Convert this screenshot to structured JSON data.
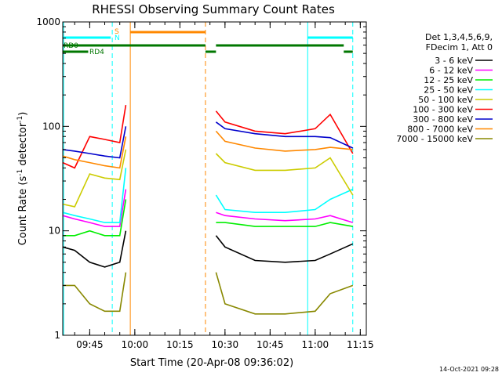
{
  "chart_data": {
    "type": "line",
    "title": "RHESSI Observing Summary Count Rates",
    "xlabel": "Start Time (20-Apr-08 09:36:02)",
    "ylabel_main": "Count Rate (s",
    "ylabel_sup1": "-1",
    "ylabel_mid": " detector",
    "ylabel_sup2": "-1",
    "ylabel_end": ")",
    "y_scale": "log",
    "ylim": [
      1,
      1000
    ],
    "y_ticks": [
      {
        "value": 1,
        "label": "1"
      },
      {
        "value": 10,
        "label": "10"
      },
      {
        "value": 100,
        "label": "100"
      },
      {
        "value": 1000,
        "label": "1000"
      }
    ],
    "x_range": [
      "09:36:02",
      "11:17:00"
    ],
    "x_ticks": [
      "09:45",
      "10:00",
      "10:15",
      "10:30",
      "10:45",
      "11:00",
      "11:15"
    ],
    "date_stamp": "14-Oct-2021 09:28",
    "legend": {
      "position": "right",
      "header": [
        "Det 1,3,4,5,6,9,",
        "FDecim 1, Att 0"
      ],
      "entries": [
        {
          "label": "3 - 6 keV",
          "color": "#000000"
        },
        {
          "label": "6 - 12 keV",
          "color": "#ff00ff"
        },
        {
          "label": "12 - 25 keV",
          "color": "#00ee00"
        },
        {
          "label": "25 - 50 keV",
          "color": "#00ffff"
        },
        {
          "label": "50 - 100 keV",
          "color": "#cccc00"
        },
        {
          "label": "100 - 300 keV",
          "color": "#ff0000"
        },
        {
          "label": "300 - 800 keV",
          "color": "#0000cc"
        },
        {
          "label": "800 - 7000 keV",
          "color": "#ff8800"
        },
        {
          "label": "7000 - 15000 keV",
          "color": "#888800"
        }
      ]
    },
    "flags": [
      {
        "label": "RD0",
        "color": "#007700",
        "segments": [
          [
            "09:36:02",
            "10:23:30"
          ],
          [
            "10:27:00",
            "11:09:30"
          ]
        ]
      },
      {
        "label": "RD4",
        "color": "#007700",
        "segments": [
          [
            "09:36:02",
            "09:44:30"
          ],
          [
            "10:23:30",
            "10:27:00"
          ],
          [
            "11:09:30",
            "11:12:30"
          ]
        ]
      },
      {
        "label": "S",
        "color": "#ff8800",
        "segments": [
          [
            "09:58:30",
            "10:23:30"
          ]
        ]
      },
      {
        "label": "N",
        "color": "#00ffff",
        "segments": [
          [
            "09:36:02",
            "09:52:00"
          ],
          [
            "10:57:30",
            "11:12:30"
          ]
        ]
      }
    ],
    "markers": [
      {
        "time": "09:36:20",
        "color": "#00ffff",
        "style": "solid"
      },
      {
        "time": "09:52:30",
        "color": "#00ffff",
        "style": "dashed"
      },
      {
        "time": "09:58:30",
        "color": "#ff8800",
        "style": "solid"
      },
      {
        "time": "10:23:30",
        "color": "#ff8800",
        "style": "dashed"
      },
      {
        "time": "10:57:30",
        "color": "#00ffff",
        "style": "solid"
      },
      {
        "time": "11:12:30",
        "color": "#00ffff",
        "style": "dashed"
      }
    ],
    "series": [
      {
        "name": "3 - 6 keV",
        "color": "#000000",
        "segments": [
          {
            "times": [
              "09:36:02",
              "09:40",
              "09:45",
              "09:50",
              "09:55",
              "09:57:00"
            ],
            "values": [
              7,
              6.5,
              5,
              4.5,
              5,
              10
            ]
          },
          {
            "times": [
              "10:27:00",
              "10:30",
              "10:40",
              "10:50",
              "11:00",
              "11:05",
              "11:12:30"
            ],
            "values": [
              9,
              7,
              5.2,
              5,
              5.2,
              6,
              7.5
            ]
          }
        ]
      },
      {
        "name": "6 - 12 keV",
        "color": "#ff00ff",
        "segments": [
          {
            "times": [
              "09:36:02",
              "09:40",
              "09:45",
              "09:50",
              "09:55",
              "09:57:00"
            ],
            "values": [
              14,
              13,
              12,
              11,
              11,
              25
            ]
          },
          {
            "times": [
              "10:27:00",
              "10:30",
              "10:40",
              "10:50",
              "11:00",
              "11:05",
              "11:12:30"
            ],
            "values": [
              15,
              14,
              13,
              12.5,
              13,
              14,
              12
            ]
          }
        ]
      },
      {
        "name": "12 - 25 keV",
        "color": "#00ee00",
        "segments": [
          {
            "times": [
              "09:36:02",
              "09:40",
              "09:45",
              "09:50",
              "09:55",
              "09:57:00"
            ],
            "values": [
              9,
              9,
              10,
              9,
              9,
              20
            ]
          },
          {
            "times": [
              "10:27:00",
              "10:30",
              "10:40",
              "10:50",
              "11:00",
              "11:05",
              "11:12:30"
            ],
            "values": [
              12,
              12,
              11,
              11,
              11,
              12,
              11
            ]
          }
        ]
      },
      {
        "name": "25 - 50 keV",
        "color": "#00ffff",
        "segments": [
          {
            "times": [
              "09:36:02",
              "09:40",
              "09:45",
              "09:50",
              "09:55",
              "09:57:00"
            ],
            "values": [
              15,
              14,
              13,
              12,
              12,
              40
            ]
          },
          {
            "times": [
              "10:27:00",
              "10:30",
              "10:40",
              "10:50",
              "11:00",
              "11:05",
              "11:12:30"
            ],
            "values": [
              22,
              16,
              15,
              15,
              16,
              20,
              25
            ]
          }
        ]
      },
      {
        "name": "50 - 100 keV",
        "color": "#cccc00",
        "segments": [
          {
            "times": [
              "09:36:02",
              "09:40",
              "09:45",
              "09:50",
              "09:55",
              "09:57:00"
            ],
            "values": [
              18,
              17,
              35,
              32,
              31,
              60
            ]
          },
          {
            "times": [
              "10:27:00",
              "10:30",
              "10:40",
              "10:50",
              "11:00",
              "11:05",
              "11:12:30"
            ],
            "values": [
              55,
              45,
              38,
              38,
              40,
              50,
              22
            ]
          }
        ]
      },
      {
        "name": "100 - 300 keV",
        "color": "#ff0000",
        "segments": [
          {
            "times": [
              "09:36:02",
              "09:40",
              "09:45",
              "09:50",
              "09:55",
              "09:57:00"
            ],
            "values": [
              45,
              40,
              80,
              75,
              70,
              160
            ]
          },
          {
            "times": [
              "10:27:00",
              "10:30",
              "10:40",
              "10:50",
              "11:00",
              "11:05",
              "11:12:30"
            ],
            "values": [
              140,
              110,
              90,
              85,
              95,
              130,
              55
            ]
          }
        ]
      },
      {
        "name": "300 - 800 keV",
        "color": "#0000cc",
        "segments": [
          {
            "times": [
              "09:36:02",
              "09:40",
              "09:45",
              "09:50",
              "09:55",
              "09:57:00"
            ],
            "values": [
              60,
              58,
              55,
              52,
              50,
              100
            ]
          },
          {
            "times": [
              "10:27:00",
              "10:30",
              "10:40",
              "10:50",
              "11:00",
              "11:05",
              "11:12:30"
            ],
            "values": [
              110,
              95,
              85,
              80,
              80,
              78,
              62
            ]
          }
        ]
      },
      {
        "name": "800 - 7000 keV",
        "color": "#ff8800",
        "segments": [
          {
            "times": [
              "09:36:02",
              "09:40",
              "09:45",
              "09:50",
              "09:55",
              "09:57:00"
            ],
            "values": [
              52,
              48,
              45,
              42,
              40,
              80
            ]
          },
          {
            "times": [
              "10:27:00",
              "10:30",
              "10:40",
              "10:50",
              "11:00",
              "11:05",
              "11:12:30"
            ],
            "values": [
              90,
              72,
              62,
              58,
              60,
              63,
              60
            ]
          }
        ]
      },
      {
        "name": "7000 - 15000 keV",
        "color": "#888800",
        "segments": [
          {
            "times": [
              "09:36:02",
              "09:40",
              "09:45",
              "09:50",
              "09:55",
              "09:57:00"
            ],
            "values": [
              3,
              3,
              2,
              1.7,
              1.7,
              4
            ]
          },
          {
            "times": [
              "10:27:00",
              "10:30",
              "10:40",
              "10:50",
              "11:00",
              "11:05",
              "11:12:30"
            ],
            "values": [
              4,
              2,
              1.6,
              1.6,
              1.7,
              2.5,
              3
            ]
          }
        ]
      }
    ]
  }
}
